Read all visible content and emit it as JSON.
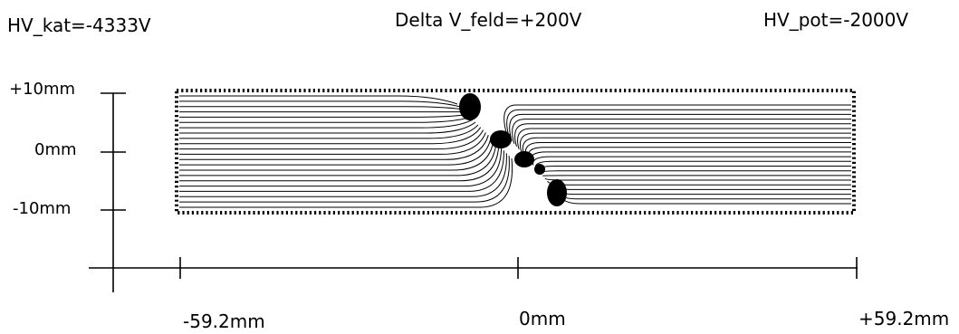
{
  "header": {
    "hv_kat": "HV_kat=-4333V",
    "delta_v": "Delta V_feld=+200V",
    "hv_pot": "HV_pot=-2000V"
  },
  "y_axis": {
    "ticks": [
      "+10mm",
      "0mm",
      "-10mm"
    ]
  },
  "x_axis": {
    "ticks": [
      "-59.2mm",
      "0mm",
      "+59.2mm"
    ]
  },
  "colors": {
    "ink": "#000000",
    "background": "#ffffff"
  }
}
